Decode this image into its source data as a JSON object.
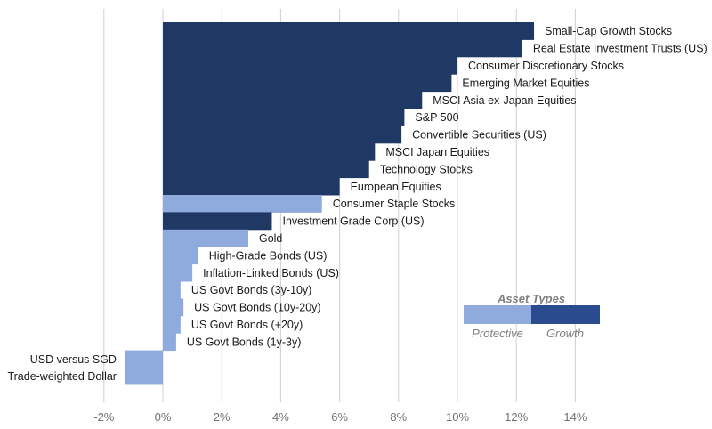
{
  "chart_data": {
    "type": "bar",
    "orientation": "horizontal",
    "grid": true,
    "xlim": [
      -2,
      15
    ],
    "xticks": [
      "-2%",
      "0%",
      "2%",
      "4%",
      "6%",
      "8%",
      "10%",
      "12%",
      "14%"
    ],
    "xtick_values": [
      -2,
      0,
      2,
      4,
      6,
      8,
      10,
      12,
      14
    ],
    "categories": [
      "Small-Cap Growth Stocks",
      "Real Estate Investment Trusts (US)",
      "Consumer Discretionary Stocks",
      "Emerging Market Equities",
      "MSCI Asia ex-Japan Equities",
      "S&P 500",
      "Convertible Securities (US)",
      "MSCI Japan Equities",
      "Technology Stocks",
      "European Equities",
      "Consumer Staple Stocks",
      "Investment Grade Corp (US)",
      "Gold",
      "High-Grade Bonds (US)",
      "Inflation-Linked Bonds (US)",
      "US Govt Bonds (3y-10y)",
      "US Govt Bonds (10y-20y)",
      "US Govt Bonds (+20y)",
      "US Govt Bonds (1y-3y)",
      "USD versus SGD",
      "Trade-weighted Dollar"
    ],
    "values": [
      12.6,
      12.2,
      10.0,
      9.8,
      8.8,
      8.2,
      8.1,
      7.2,
      7.0,
      6.0,
      5.4,
      3.7,
      2.9,
      1.2,
      1.0,
      0.6,
      0.7,
      0.6,
      0.45,
      -1.3,
      -1.3
    ],
    "asset_type": [
      "Growth",
      "Growth",
      "Growth",
      "Growth",
      "Growth",
      "Growth",
      "Growth",
      "Growth",
      "Growth",
      "Growth",
      "Protective",
      "Growth",
      "Protective",
      "Protective",
      "Protective",
      "Protective",
      "Protective",
      "Protective",
      "Protective",
      "Protective",
      "Protective"
    ],
    "legend": {
      "title": "Asset Types",
      "placement": "center-right",
      "items": [
        {
          "name": "Protective",
          "color": "#8faadc"
        },
        {
          "name": "Growth",
          "color": "#203864"
        }
      ]
    },
    "colors": {
      "Growth": "#203864",
      "Protective": "#8faadc"
    }
  }
}
